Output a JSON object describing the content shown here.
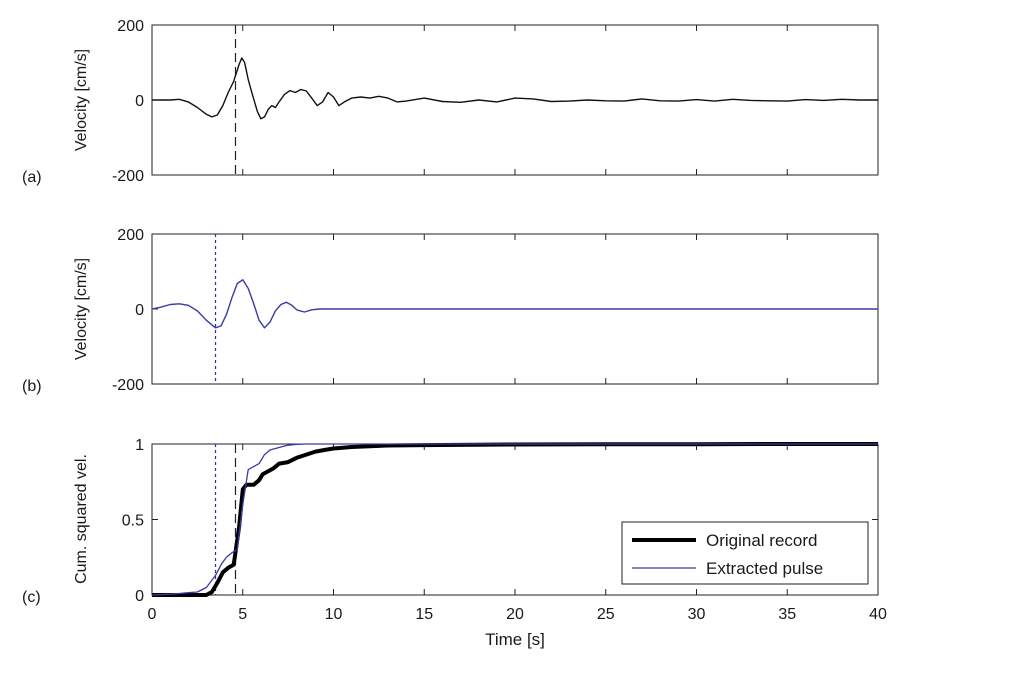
{
  "chart_data": [
    {
      "type": "line",
      "panel_label": "(a)",
      "ylabel": "Velocity [cm/s]",
      "xlim": [
        0,
        40
      ],
      "ylim": [
        -200,
        200
      ],
      "yticks": [
        -200,
        0,
        200
      ],
      "vline": {
        "x": 4.6,
        "style": "dashed",
        "color": "#222222"
      },
      "series": [
        {
          "color": "#111111",
          "x": [
            0,
            1,
            1.5,
            2,
            2.5,
            3,
            3.3,
            3.6,
            3.9,
            4.2,
            4.5,
            4.8,
            4.95,
            5.1,
            5.3,
            5.5,
            5.8,
            6.0,
            6.2,
            6.4,
            6.6,
            6.8,
            7.0,
            7.3,
            7.6,
            7.9,
            8.2,
            8.5,
            8.8,
            9.1,
            9.4,
            9.7,
            10.0,
            10.3,
            10.6,
            11.0,
            11.5,
            12,
            12.5,
            13,
            13.5,
            14,
            15,
            16,
            17,
            18,
            19,
            20,
            21,
            22,
            23,
            24,
            25,
            26,
            27,
            28,
            29,
            30,
            31,
            32,
            33,
            34,
            35,
            36,
            37,
            38,
            39,
            40
          ],
          "y": [
            0,
            0,
            2,
            -5,
            -20,
            -38,
            -45,
            -40,
            -15,
            20,
            50,
            95,
            112,
            100,
            55,
            20,
            -30,
            -50,
            -45,
            -25,
            -15,
            -20,
            -5,
            15,
            25,
            20,
            28,
            24,
            5,
            -15,
            -5,
            20,
            8,
            -15,
            -5,
            5,
            8,
            5,
            10,
            5,
            -5,
            -3,
            5,
            -4,
            -6,
            0,
            -5,
            5,
            3,
            -4,
            -3,
            0,
            -2,
            -3,
            3,
            -2,
            -3,
            1,
            -3,
            2,
            -1,
            -2,
            -3,
            1,
            -1,
            2,
            0,
            0
          ]
        }
      ]
    },
    {
      "type": "line",
      "panel_label": "(b)",
      "ylabel": "Velocity [cm/s]",
      "xlim": [
        0,
        40
      ],
      "ylim": [
        -200,
        200
      ],
      "yticks": [
        -200,
        0,
        200
      ],
      "vline": {
        "x": 3.5,
        "style": "dotted",
        "color": "#2f2f9a"
      },
      "series": [
        {
          "color": "#3a3aa8",
          "x": [
            0,
            0.5,
            1,
            1.5,
            2,
            2.5,
            3,
            3.5,
            3.8,
            4.1,
            4.4,
            4.7,
            5.0,
            5.3,
            5.6,
            5.9,
            6.2,
            6.5,
            6.8,
            7.1,
            7.4,
            7.7,
            8.0,
            8.4,
            8.8,
            9.2,
            10,
            12,
            15,
            20,
            25,
            30,
            35,
            40
          ],
          "y": [
            0,
            5,
            12,
            14,
            10,
            -5,
            -30,
            -50,
            -45,
            -15,
            30,
            68,
            78,
            55,
            15,
            -30,
            -50,
            -35,
            -5,
            12,
            18,
            10,
            -3,
            -8,
            -2,
            0,
            0,
            0,
            0,
            0,
            0,
            0,
            0,
            0
          ]
        }
      ]
    },
    {
      "type": "line",
      "panel_label": "(c)",
      "ylabel": "Cum. squared vel.",
      "xlabel": "Time [s]",
      "xlim": [
        0,
        40
      ],
      "ylim": [
        0,
        1
      ],
      "yticks": [
        0,
        0.5,
        1
      ],
      "xticks": [
        0,
        5,
        10,
        15,
        20,
        25,
        30,
        35,
        40
      ],
      "vlines": [
        {
          "x": 3.5,
          "style": "dotted",
          "color": "#2f2f9a"
        },
        {
          "x": 4.6,
          "style": "dashed",
          "color": "#222222"
        }
      ],
      "legend": {
        "position": "bottom-right"
      },
      "series": [
        {
          "name": "Original record",
          "color": "#000000",
          "linewidth": "thick",
          "x": [
            0,
            1,
            2,
            3,
            3.3,
            3.6,
            3.9,
            4.2,
            4.5,
            4.8,
            5.0,
            5.2,
            5.4,
            5.6,
            5.9,
            6.1,
            6.4,
            6.7,
            7.0,
            7.5,
            8.0,
            8.5,
            9,
            9.5,
            10,
            11,
            12,
            13,
            15,
            20,
            25,
            30,
            35,
            40
          ],
          "y": [
            0,
            0,
            0,
            0,
            0.02,
            0.08,
            0.15,
            0.18,
            0.2,
            0.45,
            0.7,
            0.73,
            0.73,
            0.73,
            0.76,
            0.8,
            0.82,
            0.84,
            0.87,
            0.88,
            0.91,
            0.93,
            0.95,
            0.96,
            0.97,
            0.98,
            0.985,
            0.99,
            0.993,
            0.997,
            0.998,
            0.999,
            1,
            1
          ]
        },
        {
          "name": "Extracted pulse",
          "color": "#3a3aa8",
          "linewidth": "thin",
          "x": [
            0,
            1,
            1.5,
            2,
            2.5,
            3,
            3.5,
            3.8,
            4.1,
            4.4,
            4.7,
            5.0,
            5.3,
            5.6,
            5.9,
            6.2,
            6.5,
            6.8,
            7.1,
            7.4,
            7.7,
            8.0,
            8.5,
            9,
            10,
            15,
            20,
            25,
            30,
            35,
            40
          ],
          "y": [
            0,
            0.005,
            0.01,
            0.015,
            0.02,
            0.05,
            0.13,
            0.2,
            0.25,
            0.28,
            0.3,
            0.6,
            0.83,
            0.85,
            0.87,
            0.93,
            0.96,
            0.97,
            0.98,
            0.99,
            0.995,
            0.998,
            1,
            1,
            1,
            1,
            1,
            1,
            1,
            1,
            1
          ]
        }
      ]
    }
  ]
}
